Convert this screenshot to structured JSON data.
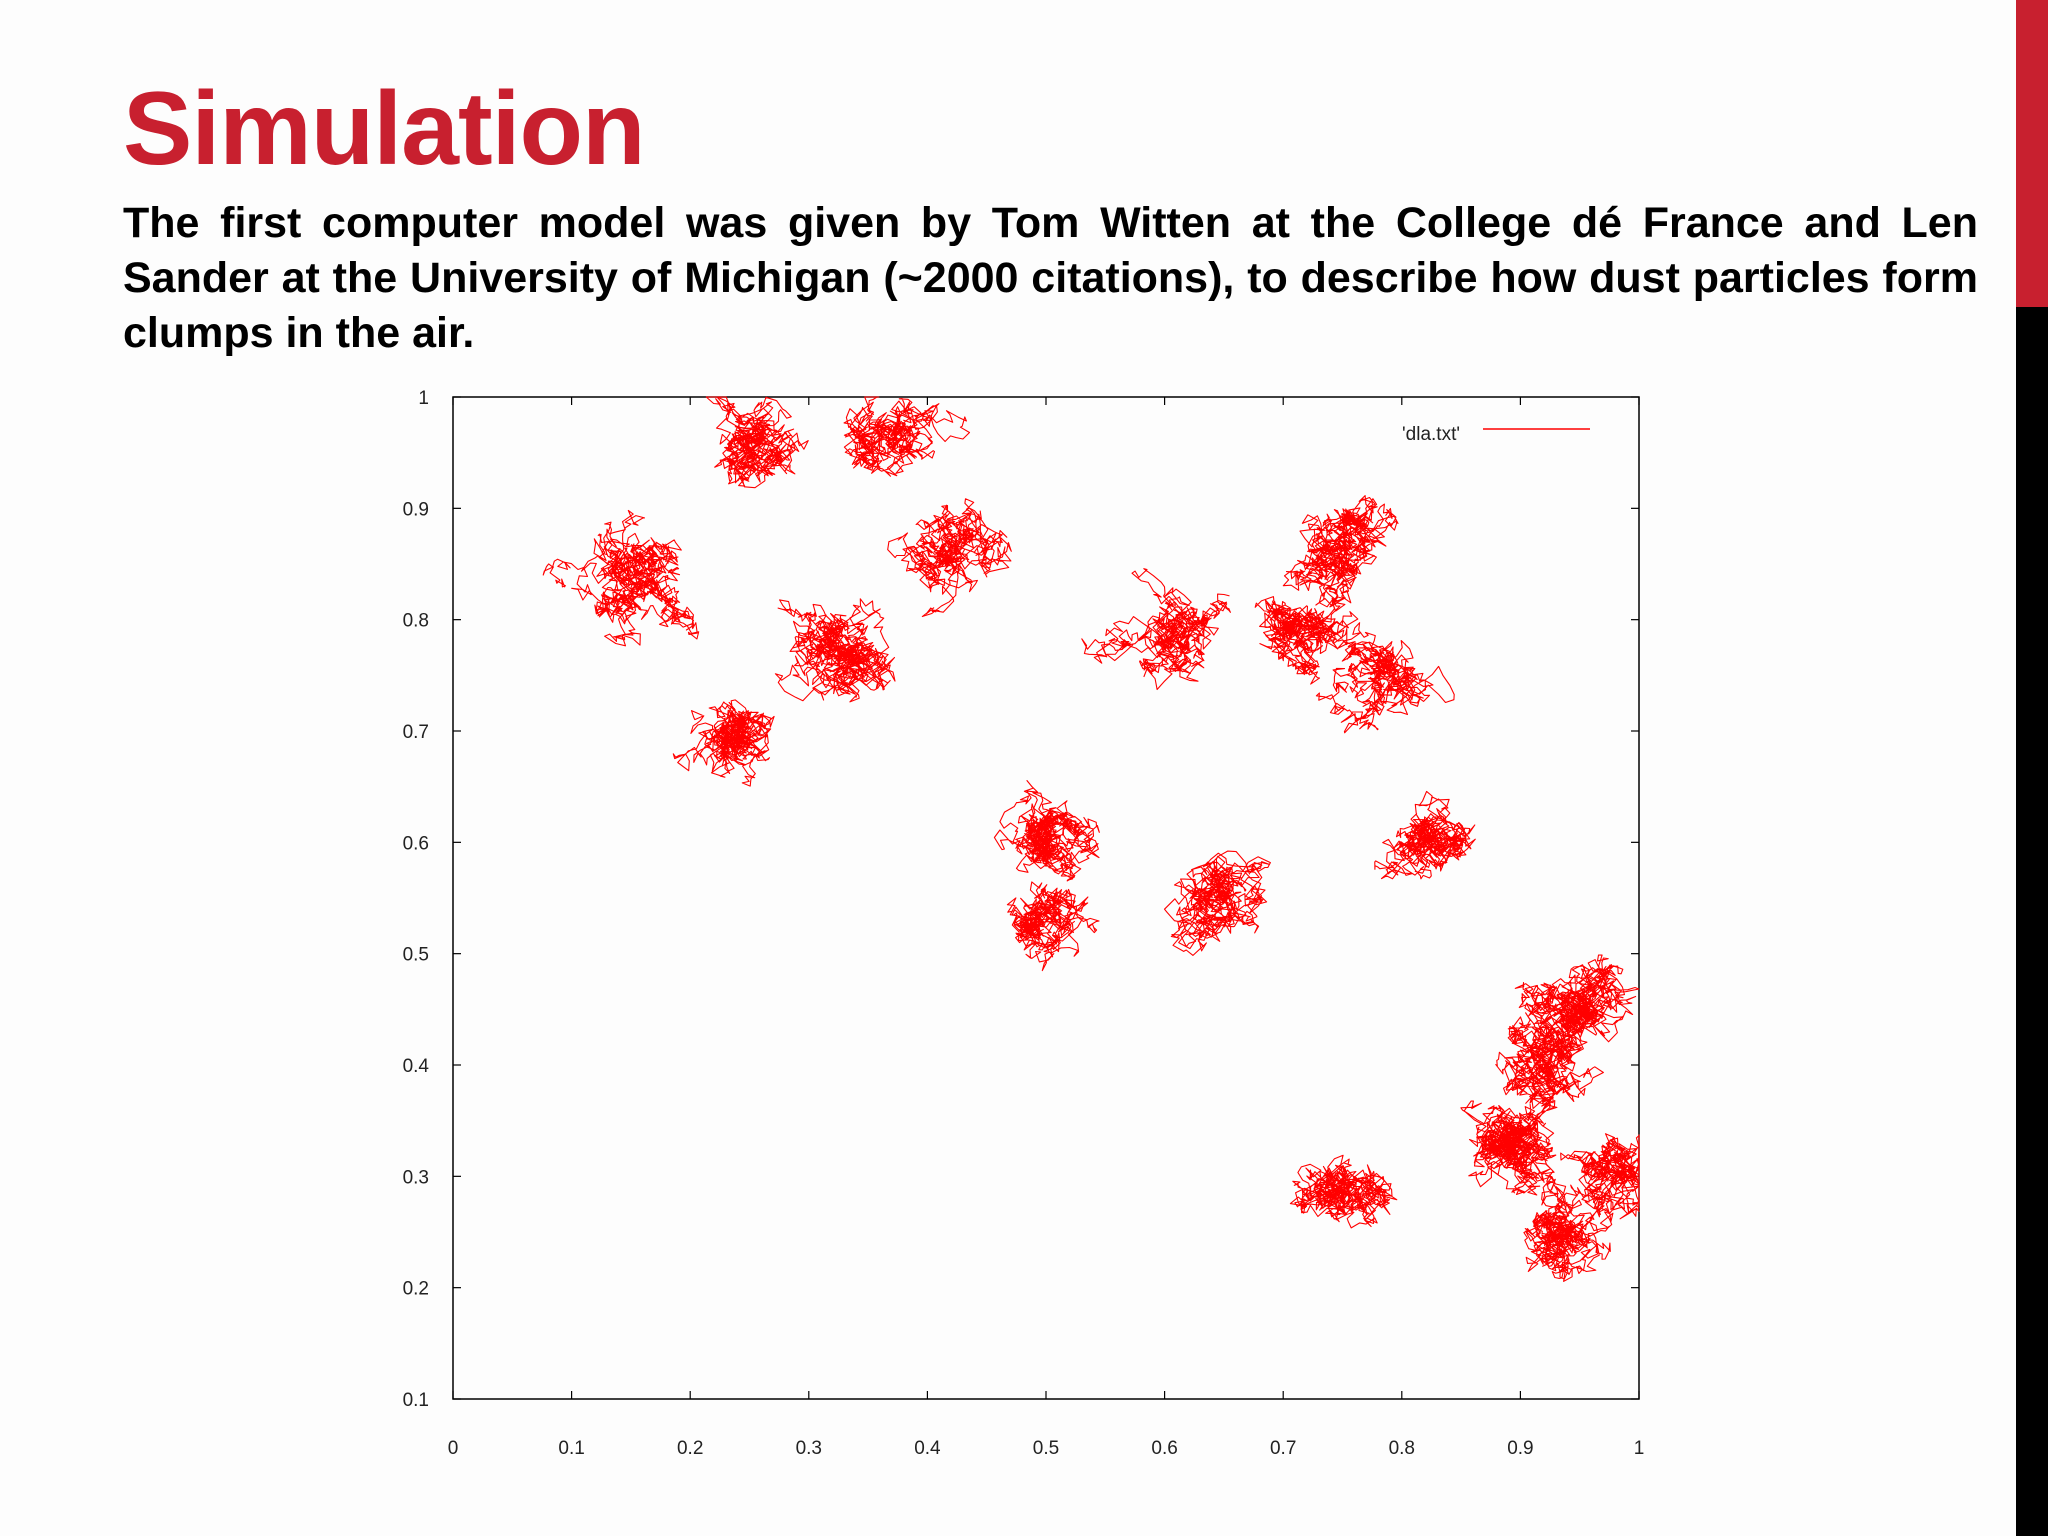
{
  "slide": {
    "title": "Simulation",
    "body": "The first computer model was given by Tom Witten at the College dé France and Len Sander at the University of Michigan (~2000 citations), to describe how dust particles form clumps in the air.",
    "accent_color": "#c8202f",
    "accent_secondary": "#000000"
  },
  "chart_data": {
    "type": "line",
    "title": "",
    "xlabel": "",
    "ylabel": "",
    "xlim": [
      0,
      1
    ],
    "ylim": [
      0.1,
      1
    ],
    "x_ticks": [
      "0",
      "0.1",
      "0.2",
      "0.3",
      "0.4",
      "0.5",
      "0.6",
      "0.7",
      "0.8",
      "0.9",
      "1"
    ],
    "y_ticks": [
      "0.1",
      "0.2",
      "0.3",
      "0.4",
      "0.5",
      "0.6",
      "0.7",
      "0.8",
      "0.9",
      "1"
    ],
    "grid": false,
    "legend": {
      "position": "top-right",
      "entries": [
        "'dla.txt'"
      ]
    },
    "series": [
      {
        "name": "'dla.txt'",
        "color": "#ff0000",
        "clusters": [
          {
            "cx": 0.15,
            "cy": 0.84,
            "sx": 0.05,
            "sy": 0.06
          },
          {
            "cx": 0.33,
            "cy": 0.77,
            "sx": 0.05,
            "sy": 0.06
          },
          {
            "cx": 0.24,
            "cy": 0.69,
            "sx": 0.035,
            "sy": 0.035
          },
          {
            "cx": 0.25,
            "cy": 0.96,
            "sx": 0.04,
            "sy": 0.03
          },
          {
            "cx": 0.37,
            "cy": 0.97,
            "sx": 0.03,
            "sy": 0.025
          },
          {
            "cx": 0.42,
            "cy": 0.86,
            "sx": 0.04,
            "sy": 0.03
          },
          {
            "cx": 0.6,
            "cy": 0.79,
            "sx": 0.04,
            "sy": 0.025
          },
          {
            "cx": 0.71,
            "cy": 0.79,
            "sx": 0.04,
            "sy": 0.025
          },
          {
            "cx": 0.76,
            "cy": 0.87,
            "sx": 0.045,
            "sy": 0.05
          },
          {
            "cx": 0.78,
            "cy": 0.74,
            "sx": 0.03,
            "sy": 0.025
          },
          {
            "cx": 0.51,
            "cy": 0.61,
            "sx": 0.04,
            "sy": 0.04
          },
          {
            "cx": 0.5,
            "cy": 0.53,
            "sx": 0.02,
            "sy": 0.025
          },
          {
            "cx": 0.65,
            "cy": 0.55,
            "sx": 0.05,
            "sy": 0.03
          },
          {
            "cx": 0.83,
            "cy": 0.6,
            "sx": 0.04,
            "sy": 0.025
          },
          {
            "cx": 0.95,
            "cy": 0.45,
            "sx": 0.04,
            "sy": 0.07
          },
          {
            "cx": 0.89,
            "cy": 0.33,
            "sx": 0.05,
            "sy": 0.06
          },
          {
            "cx": 0.75,
            "cy": 0.29,
            "sx": 0.04,
            "sy": 0.035
          },
          {
            "cx": 0.94,
            "cy": 0.25,
            "sx": 0.035,
            "sy": 0.04
          },
          {
            "cx": 0.93,
            "cy": 0.4,
            "sx": 0.04,
            "sy": 0.05
          },
          {
            "cx": 0.98,
            "cy": 0.3,
            "sx": 0.015,
            "sy": 0.05
          }
        ]
      }
    ]
  }
}
